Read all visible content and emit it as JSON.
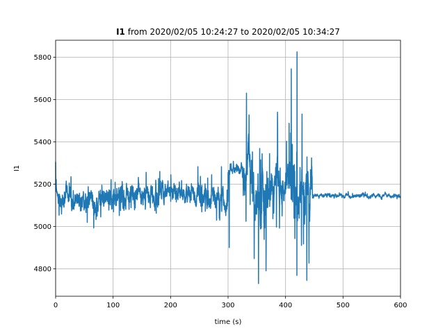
{
  "chart_data": {
    "type": "line",
    "title": {
      "bold": "I1",
      "rest": " from 2020/02/05 10:24:27 to 2020/02/05 10:34:27"
    },
    "xlabel": "time (s)",
    "ylabel": "I1",
    "xlim": [
      0,
      600
    ],
    "ylim": [
      4670,
      5880
    ],
    "xticks": [
      0,
      100,
      200,
      300,
      400,
      500,
      600
    ],
    "yticks": [
      4800,
      5000,
      5200,
      5400,
      5600,
      5800
    ],
    "grid": true,
    "legend": "none",
    "series": [
      {
        "color": "#1f77b4",
        "segments": [
          {
            "x0": 0,
            "x1": 40,
            "mean": 5135,
            "noise": 55,
            "spike": 90,
            "spikeProb": 0.06
          },
          {
            "x0": 40,
            "x1": 80,
            "mean": 5120,
            "noise": 55,
            "spike": 100,
            "spikeProb": 0.07
          },
          {
            "x0": 80,
            "x1": 130,
            "mean": 5140,
            "noise": 55,
            "spike": 110,
            "spikeProb": 0.07
          },
          {
            "x0": 130,
            "x1": 180,
            "mean": 5150,
            "noise": 55,
            "spike": 95,
            "spikeProb": 0.07
          },
          {
            "x0": 180,
            "x1": 250,
            "mean": 5160,
            "noise": 50,
            "spike": 90,
            "spikeProb": 0.06
          },
          {
            "x0": 250,
            "x1": 300,
            "mean": 5120,
            "noise": 60,
            "spike": 110,
            "spikeProb": 0.08
          },
          {
            "x0": 300,
            "x1": 325,
            "mean": 5270,
            "noise": 25,
            "spike": 40,
            "spikeProb": 0.04
          },
          {
            "x0": 325,
            "x1": 345,
            "mean": 5250,
            "noise": 110,
            "spike": 250,
            "spikeProb": 0.12
          },
          {
            "x0": 345,
            "x1": 375,
            "mean": 5150,
            "noise": 120,
            "spike": 280,
            "spikeProb": 0.14
          },
          {
            "x0": 375,
            "x1": 410,
            "mean": 5200,
            "noise": 100,
            "spike": 260,
            "spikeProb": 0.12
          },
          {
            "x0": 410,
            "x1": 447,
            "mean": 5180,
            "noise": 120,
            "spike": 300,
            "spikeProb": 0.14
          },
          {
            "x0": 447,
            "x1": 600,
            "mean": 5145,
            "noise": 9,
            "spike": 15,
            "spikeProb": 0.03
          }
        ],
        "peaks": [
          {
            "x": 420,
            "y": 5825
          },
          {
            "x": 437,
            "y": 4745
          },
          {
            "x": 353,
            "y": 4730
          },
          {
            "x": 332,
            "y": 5630
          },
          {
            "x": 410,
            "y": 5745
          },
          {
            "x": 386,
            "y": 5540
          },
          {
            "x": 366,
            "y": 4790
          },
          {
            "x": 0,
            "y": 5305
          },
          {
            "x": 302,
            "y": 4900
          }
        ]
      }
    ]
  }
}
